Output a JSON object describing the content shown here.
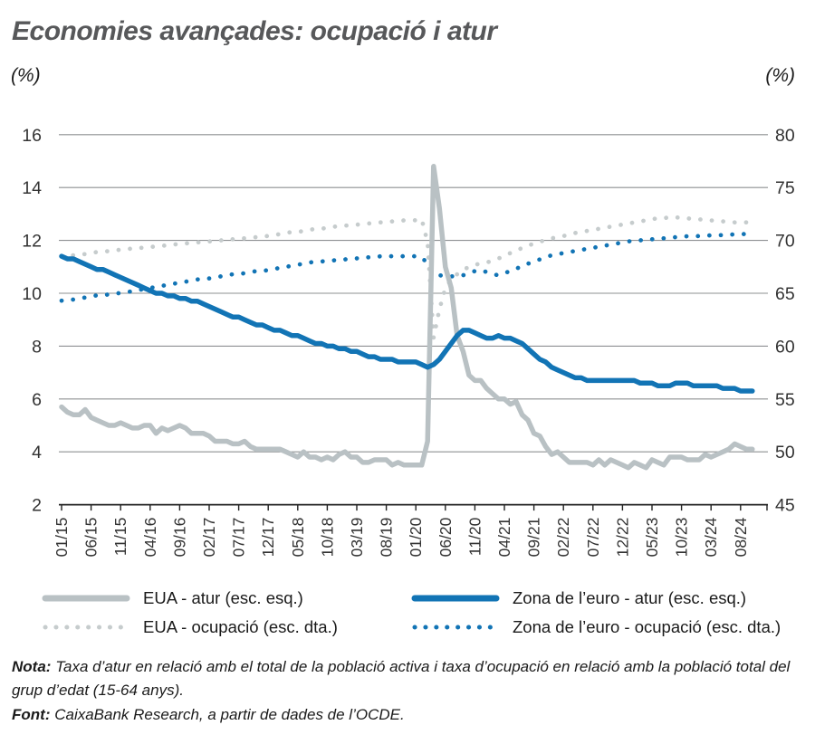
{
  "page": {
    "title": "Economies avançades: ocupació i atur",
    "left_axis_unit": "(%)",
    "right_axis_unit": "(%)"
  },
  "colors": {
    "blue": "#1274b5",
    "gray_line": "#b9c1c4",
    "gray_dot": "#c6cccd",
    "gridline": "#8e9092",
    "axis": "#222222",
    "tick_text": "#333333",
    "title_text": "#57585a"
  },
  "notes": {
    "nota_bold": "Nota:",
    "nota_text": "Taxa d’atur en relació amb el total de la població activa i taxa d’ocupació en relació amb la població total del grup d’edat (15-64 anys).",
    "font_bold": "Font:",
    "font_text": "CaixaBank Research, a partir de dades de l’OCDE."
  },
  "chart_data": {
    "type": "line",
    "title": "Economies avançades: ocupació i atur",
    "x_frequency": "monthly",
    "x_start": "01/2015",
    "x_end": "10/2024",
    "x_tick_labels": [
      "01/15",
      "06/15",
      "11/15",
      "04/16",
      "09/16",
      "02/17",
      "07/17",
      "12/17",
      "05/18",
      "10/18",
      "03/19",
      "08/19",
      "01/20",
      "06/20",
      "11/20",
      "04/21",
      "09/21",
      "02/22",
      "07/22",
      "12/22",
      "05/23",
      "10/23",
      "03/24",
      "08/24"
    ],
    "x_tick_month_indices": [
      0,
      5,
      10,
      15,
      20,
      25,
      30,
      35,
      40,
      45,
      50,
      55,
      60,
      65,
      70,
      75,
      80,
      85,
      90,
      95,
      100,
      105,
      110,
      115
    ],
    "left_axis": {
      "label": "(%)",
      "ticks": [
        16,
        14,
        12,
        10,
        8,
        6,
        4,
        2
      ],
      "range": [
        2,
        16
      ]
    },
    "right_axis": {
      "label": "(%)",
      "ticks": [
        80,
        75,
        70,
        65,
        60,
        55,
        50,
        45
      ],
      "range": [
        45,
        80
      ]
    },
    "grid": "horizontal",
    "legend_position": "bottom",
    "series": [
      {
        "name": "EUA - atur (esc. esq.)",
        "axis": "left",
        "style": "solid",
        "color": "#b9c1c4",
        "values": [
          5.7,
          5.5,
          5.4,
          5.4,
          5.6,
          5.3,
          5.2,
          5.1,
          5.0,
          5.0,
          5.1,
          5.0,
          4.9,
          4.9,
          5.0,
          5.0,
          4.7,
          4.9,
          4.8,
          4.9,
          5.0,
          4.9,
          4.7,
          4.7,
          4.7,
          4.6,
          4.4,
          4.4,
          4.4,
          4.3,
          4.3,
          4.4,
          4.2,
          4.1,
          4.1,
          4.1,
          4.1,
          4.1,
          4.0,
          3.9,
          3.8,
          4.0,
          3.8,
          3.8,
          3.7,
          3.8,
          3.7,
          3.9,
          4.0,
          3.8,
          3.8,
          3.6,
          3.6,
          3.7,
          3.7,
          3.7,
          3.5,
          3.6,
          3.5,
          3.5,
          3.5,
          3.5,
          4.4,
          14.8,
          13.2,
          11.0,
          10.2,
          8.4,
          7.8,
          6.9,
          6.7,
          6.7,
          6.4,
          6.2,
          6.0,
          6.0,
          5.8,
          5.9,
          5.4,
          5.2,
          4.7,
          4.6,
          4.2,
          3.9,
          4.0,
          3.8,
          3.6,
          3.6,
          3.6,
          3.6,
          3.5,
          3.7,
          3.5,
          3.7,
          3.6,
          3.5,
          3.4,
          3.6,
          3.5,
          3.4,
          3.7,
          3.6,
          3.5,
          3.8,
          3.8,
          3.8,
          3.7,
          3.7,
          3.7,
          3.9,
          3.8,
          3.9,
          4.0,
          4.1,
          4.3,
          4.2,
          4.1,
          4.1
        ]
      },
      {
        "name": "EUA - ocupació (esc. dta.)",
        "axis": "right",
        "style": "dotted",
        "color": "#c6cccd",
        "values": [
          68.5,
          68.5,
          68.6,
          68.7,
          68.7,
          68.8,
          68.9,
          68.9,
          69.0,
          69.1,
          69.1,
          69.2,
          69.2,
          69.3,
          69.3,
          69.4,
          69.4,
          69.5,
          69.5,
          69.6,
          69.7,
          69.7,
          69.8,
          69.8,
          69.9,
          69.9,
          70.0,
          70.0,
          70.1,
          70.1,
          70.2,
          70.2,
          70.3,
          70.3,
          70.4,
          70.4,
          70.5,
          70.6,
          70.7,
          70.8,
          70.8,
          70.9,
          71.0,
          71.1,
          71.1,
          71.2,
          71.3,
          71.3,
          71.4,
          71.4,
          71.5,
          71.5,
          71.6,
          71.6,
          71.7,
          71.7,
          71.8,
          71.8,
          71.9,
          71.9,
          71.9,
          72.0,
          69.8,
          60.8,
          63.5,
          65.5,
          66.3,
          66.8,
          67.2,
          67.5,
          67.7,
          67.8,
          67.9,
          68.1,
          68.3,
          68.5,
          68.8,
          69.0,
          69.3,
          69.5,
          69.7,
          69.9,
          70.0,
          70.2,
          70.3,
          70.4,
          70.6,
          70.7,
          70.8,
          70.9,
          71.0,
          71.1,
          71.2,
          71.3,
          71.4,
          71.5,
          71.6,
          71.7,
          71.8,
          71.9,
          72.0,
          72.1,
          72.1,
          72.2,
          72.2,
          72.1,
          72.1,
          72.0,
          72.0,
          71.9,
          71.9,
          71.8,
          71.8,
          71.8,
          71.7,
          71.7,
          71.7,
          71.7
        ]
      },
      {
        "name": "Zona de l’euro - atur (esc. esq.)",
        "axis": "left",
        "style": "solid",
        "color": "#1274b5",
        "values": [
          11.4,
          11.3,
          11.3,
          11.2,
          11.1,
          11.0,
          10.9,
          10.9,
          10.8,
          10.7,
          10.6,
          10.5,
          10.4,
          10.3,
          10.2,
          10.1,
          10.0,
          10.0,
          9.9,
          9.9,
          9.8,
          9.8,
          9.7,
          9.7,
          9.6,
          9.5,
          9.4,
          9.3,
          9.2,
          9.1,
          9.1,
          9.0,
          8.9,
          8.8,
          8.8,
          8.7,
          8.6,
          8.6,
          8.5,
          8.4,
          8.4,
          8.3,
          8.2,
          8.1,
          8.1,
          8.0,
          8.0,
          7.9,
          7.9,
          7.8,
          7.8,
          7.7,
          7.6,
          7.6,
          7.5,
          7.5,
          7.5,
          7.4,
          7.4,
          7.4,
          7.4,
          7.3,
          7.2,
          7.3,
          7.5,
          7.8,
          8.1,
          8.4,
          8.6,
          8.6,
          8.5,
          8.4,
          8.3,
          8.3,
          8.4,
          8.3,
          8.3,
          8.2,
          8.1,
          7.9,
          7.7,
          7.5,
          7.4,
          7.2,
          7.1,
          7.0,
          6.9,
          6.8,
          6.8,
          6.7,
          6.7,
          6.7,
          6.7,
          6.7,
          6.7,
          6.7,
          6.7,
          6.7,
          6.6,
          6.6,
          6.6,
          6.5,
          6.5,
          6.5,
          6.6,
          6.6,
          6.6,
          6.5,
          6.5,
          6.5,
          6.5,
          6.5,
          6.4,
          6.4,
          6.4,
          6.3,
          6.3,
          6.3
        ]
      },
      {
        "name": "Zona de l’euro - ocupació (esc. dta.)",
        "axis": "right",
        "style": "dotted",
        "color": "#1274b5",
        "values": [
          64.3,
          64.4,
          64.4,
          64.5,
          64.6,
          64.7,
          64.8,
          64.8,
          64.9,
          65.0,
          65.0,
          65.1,
          65.2,
          65.3,
          65.4,
          65.5,
          65.6,
          65.7,
          65.8,
          65.9,
          66.0,
          66.1,
          66.2,
          66.3,
          66.4,
          66.4,
          66.5,
          66.6,
          66.7,
          66.8,
          66.8,
          66.9,
          67.0,
          67.1,
          67.1,
          67.2,
          67.3,
          67.4,
          67.5,
          67.6,
          67.7,
          67.8,
          67.9,
          68.0,
          68.0,
          68.1,
          68.1,
          68.2,
          68.2,
          68.3,
          68.3,
          68.4,
          68.4,
          68.4,
          68.5,
          68.5,
          68.5,
          68.5,
          68.5,
          68.5,
          68.5,
          68.4,
          67.8,
          67.0,
          66.7,
          66.6,
          66.6,
          66.6,
          66.7,
          66.9,
          67.1,
          67.2,
          67.0,
          66.8,
          66.7,
          66.9,
          67.1,
          67.3,
          67.6,
          67.8,
          68.0,
          68.2,
          68.4,
          68.6,
          68.7,
          68.8,
          68.9,
          69.0,
          69.1,
          69.2,
          69.3,
          69.4,
          69.5,
          69.6,
          69.7,
          69.8,
          69.9,
          70.0,
          70.0,
          70.1,
          70.1,
          70.2,
          70.2,
          70.3,
          70.3,
          70.3,
          70.4,
          70.4,
          70.4,
          70.4,
          70.5,
          70.5,
          70.5,
          70.5,
          70.6,
          70.6,
          70.6,
          70.6
        ]
      }
    ]
  }
}
